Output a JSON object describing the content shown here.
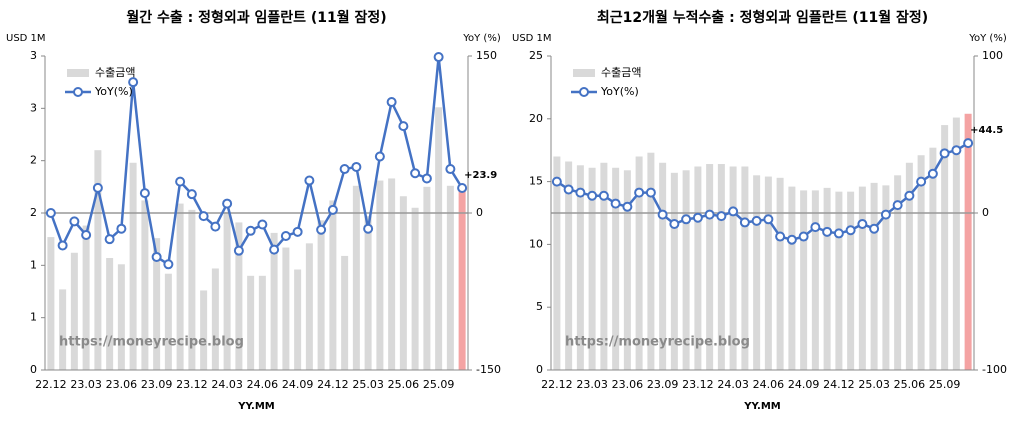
{
  "chart_data": [
    {
      "type": "bar_line",
      "title": "월간 수출 : 정형외과 임플란트 (11월 잠정)",
      "y_label": "USD 1M",
      "y2_label": "YoY (%)",
      "x_label": "YY.MM",
      "watermark": "https://moneyrecipe.blog",
      "categories": [
        "22.12",
        null,
        null,
        "23.03",
        null,
        null,
        "23.06",
        null,
        null,
        "23.09",
        null,
        null,
        "23.12",
        null,
        null,
        "24.03",
        null,
        null,
        "24.06",
        null,
        null,
        "24.09",
        null,
        null,
        "24.12",
        null,
        null,
        "25.03",
        null,
        null,
        "25.06",
        null,
        null,
        "25.09",
        null,
        null
      ],
      "ylim": [
        0,
        3
      ],
      "yticks": [
        0,
        {
          "value": 0.5,
          "label": "1"
        },
        1,
        {
          "value": 1.5,
          "label": "2"
        },
        2,
        {
          "value": 2.5,
          "label": "3"
        },
        3
      ],
      "y2lim": [
        -150,
        150
      ],
      "y2ticks": [
        -150,
        0,
        150
      ],
      "series": [
        {
          "name": "수출금액",
          "type": "bar",
          "color": "#d9d9d9",
          "highlight_color": "#f4a3a3",
          "values": [
            1.27,
            0.77,
            1.12,
            1.38,
            2.1,
            1.07,
            1.01,
            1.98,
            1.62,
            1.26,
            0.92,
            1.59,
            1.53,
            0.76,
            0.97,
            1.51,
            1.41,
            0.9,
            0.9,
            1.31,
            1.17,
            0.96,
            1.21,
            1.43,
            1.62,
            1.09,
            1.76,
            1.47,
            1.81,
            1.83,
            1.66,
            1.55,
            1.75,
            2.51,
            1.76,
            1.77
          ]
        },
        {
          "name": "YoY(%)",
          "type": "line",
          "axis": "y2",
          "color": "#4472c4",
          "label_color": "#ff0000",
          "values": [
            0,
            -31,
            -8,
            -21,
            24,
            -25,
            -15,
            125,
            19,
            -42,
            -49,
            30,
            18,
            -3,
            -13,
            9,
            -36,
            -17,
            -11,
            -35,
            -22,
            -18,
            31,
            -16,
            3,
            42,
            44,
            -15,
            54,
            106,
            83,
            38,
            33,
            149,
            42,
            23.9
          ],
          "value_labels": [
            null,
            null,
            null,
            null,
            null,
            null,
            null,
            null,
            null,
            null,
            null,
            null,
            null,
            null,
            null,
            null,
            null,
            null,
            null,
            null,
            null,
            null,
            null,
            null,
            null,
            null,
            null,
            null,
            null,
            null,
            null,
            null,
            null,
            null,
            null,
            "+23.9"
          ]
        }
      ]
    },
    {
      "type": "bar_line",
      "title": "최근12개월 누적수출 : 정형외과 임플란트 (11월 잠정)",
      "y_label": "USD 1M",
      "y2_label": "YoY (%)",
      "x_label": "YY.MM",
      "watermark": "https://moneyrecipe.blog",
      "categories": [
        "22.12",
        null,
        null,
        "23.03",
        null,
        null,
        "23.06",
        null,
        null,
        "23.09",
        null,
        null,
        "23.12",
        null,
        null,
        "24.03",
        null,
        null,
        "24.06",
        null,
        null,
        "24.09",
        null,
        null,
        "24.12",
        null,
        null,
        "25.03",
        null,
        null,
        "25.06",
        null,
        null,
        "25.09",
        null,
        null
      ],
      "ylim": [
        0,
        25
      ],
      "yticks": [
        0,
        5,
        10,
        15,
        20,
        25
      ],
      "y2lim": [
        -100,
        100
      ],
      "y2ticks": [
        -100,
        0,
        100
      ],
      "series": [
        {
          "name": "수출금액",
          "type": "bar",
          "color": "#d9d9d9",
          "highlight_color": "#f4a3a3",
          "values": [
            17.0,
            16.6,
            16.3,
            16.1,
            16.5,
            16.1,
            15.9,
            17.0,
            17.3,
            16.5,
            15.7,
            15.9,
            16.2,
            16.4,
            16.4,
            16.2,
            16.2,
            15.5,
            15.4,
            15.3,
            14.6,
            14.3,
            14.3,
            14.5,
            14.2,
            14.2,
            14.6,
            14.9,
            14.7,
            15.5,
            16.5,
            17.1,
            17.7,
            19.5,
            20.1,
            20.4
          ]
        },
        {
          "name": "YoY(%)",
          "type": "line",
          "axis": "y2",
          "color": "#4472c4",
          "label_color": "#ff0000",
          "values": [
            20,
            15,
            13,
            11,
            11,
            6,
            4,
            13,
            13,
            -1,
            -7,
            -4,
            -3,
            -1,
            -2,
            1,
            -6,
            -5,
            -4,
            -15,
            -17,
            -15,
            -9,
            -12,
            -13,
            -11,
            -7,
            -10,
            -1,
            5,
            11,
            20,
            25,
            38,
            40,
            44.5
          ],
          "value_labels": [
            null,
            null,
            null,
            null,
            null,
            null,
            null,
            null,
            null,
            null,
            null,
            null,
            null,
            null,
            null,
            null,
            null,
            null,
            null,
            null,
            null,
            null,
            null,
            null,
            null,
            null,
            null,
            null,
            null,
            null,
            null,
            null,
            null,
            null,
            null,
            "+44.5"
          ]
        }
      ]
    }
  ]
}
